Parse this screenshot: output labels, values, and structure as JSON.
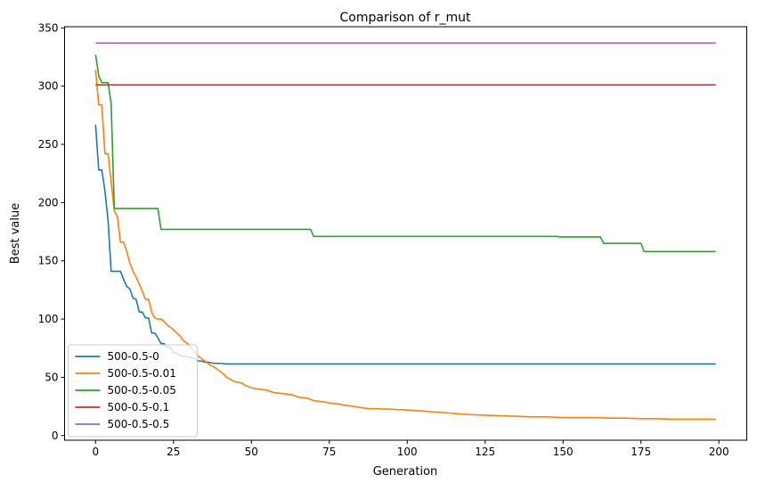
{
  "chart_data": {
    "type": "line",
    "title": "Comparison of r_mut",
    "xlabel": "Generation",
    "ylabel": "Best value",
    "xlim": [
      -9.95,
      208.95
    ],
    "ylim": [
      -4.0,
      351.0
    ],
    "xticks": [
      0,
      25,
      50,
      75,
      100,
      125,
      150,
      175,
      200
    ],
    "yticks": [
      0,
      50,
      100,
      150,
      200,
      250,
      300,
      350
    ],
    "grid": false,
    "legend_position": "lower-left",
    "series": [
      {
        "name": "500-0.5-0",
        "color": "#1f77b4",
        "points": [
          [
            0,
            267
          ],
          [
            1,
            228
          ],
          [
            2,
            228
          ],
          [
            3,
            210
          ],
          [
            4,
            185
          ],
          [
            5,
            141
          ],
          [
            6,
            141
          ],
          [
            7,
            141
          ],
          [
            8,
            141
          ],
          [
            9,
            134
          ],
          [
            10,
            128
          ],
          [
            11,
            126
          ],
          [
            12,
            118
          ],
          [
            13,
            117
          ],
          [
            14,
            106
          ],
          [
            15,
            106
          ],
          [
            16,
            101
          ],
          [
            17,
            101
          ],
          [
            18,
            88
          ],
          [
            19,
            88
          ],
          [
            20,
            84
          ],
          [
            21,
            79
          ],
          [
            22,
            79
          ],
          [
            23,
            76
          ],
          [
            24,
            76
          ],
          [
            25,
            71
          ],
          [
            26,
            71
          ],
          [
            27,
            69
          ],
          [
            28,
            68
          ],
          [
            29,
            68
          ],
          [
            30,
            67
          ],
          [
            31,
            67
          ],
          [
            32,
            65
          ],
          [
            33,
            64
          ],
          [
            34,
            64
          ],
          [
            35,
            63
          ],
          [
            36,
            63
          ],
          [
            38,
            62
          ],
          [
            40,
            62
          ],
          [
            42,
            61.5
          ],
          [
            50,
            61.5
          ],
          [
            75,
            61.5
          ],
          [
            100,
            61.5
          ],
          [
            125,
            61.5
          ],
          [
            150,
            61.5
          ],
          [
            175,
            61.5
          ],
          [
            199,
            61.5
          ]
        ]
      },
      {
        "name": "500-0.5-0.01",
        "color": "#ff7f0e",
        "points": [
          [
            0,
            314
          ],
          [
            1,
            284
          ],
          [
            2,
            284
          ],
          [
            3,
            242
          ],
          [
            4,
            242
          ],
          [
            5,
            218
          ],
          [
            6,
            193
          ],
          [
            7,
            188
          ],
          [
            8,
            166
          ],
          [
            9,
            166
          ],
          [
            10,
            158
          ],
          [
            11,
            148
          ],
          [
            12,
            141
          ],
          [
            13,
            136
          ],
          [
            14,
            130
          ],
          [
            15,
            124
          ],
          [
            16,
            117
          ],
          [
            17,
            117
          ],
          [
            18,
            106
          ],
          [
            19,
            101
          ],
          [
            20,
            100
          ],
          [
            21,
            100
          ],
          [
            22,
            98
          ],
          [
            23,
            95
          ],
          [
            24,
            93
          ],
          [
            25,
            91
          ],
          [
            26,
            88
          ],
          [
            27,
            86
          ],
          [
            28,
            82
          ],
          [
            29,
            80
          ],
          [
            30,
            78
          ],
          [
            31,
            74
          ],
          [
            32,
            71
          ],
          [
            33,
            68
          ],
          [
            34,
            66
          ],
          [
            35,
            64
          ],
          [
            36,
            62
          ],
          [
            37,
            60
          ],
          [
            38,
            59
          ],
          [
            39,
            57
          ],
          [
            40,
            55
          ],
          [
            41,
            53
          ],
          [
            42,
            50
          ],
          [
            43,
            49
          ],
          [
            44,
            47
          ],
          [
            45,
            46
          ],
          [
            47,
            45
          ],
          [
            48,
            43
          ],
          [
            50,
            41
          ],
          [
            52,
            40
          ],
          [
            55,
            39
          ],
          [
            57,
            37
          ],
          [
            60,
            36
          ],
          [
            63,
            35
          ],
          [
            65,
            33
          ],
          [
            68,
            32
          ],
          [
            70,
            30
          ],
          [
            73,
            29
          ],
          [
            75,
            28
          ],
          [
            78,
            27
          ],
          [
            80,
            26
          ],
          [
            83,
            25
          ],
          [
            85,
            24
          ],
          [
            88,
            23
          ],
          [
            90,
            23
          ],
          [
            95,
            22.5
          ],
          [
            100,
            22
          ],
          [
            105,
            21
          ],
          [
            110,
            20
          ],
          [
            115,
            19
          ],
          [
            120,
            18
          ],
          [
            125,
            17.5
          ],
          [
            130,
            17
          ],
          [
            135,
            16.5
          ],
          [
            140,
            16
          ],
          [
            145,
            16
          ],
          [
            150,
            15.5
          ],
          [
            160,
            15.5
          ],
          [
            165,
            15
          ],
          [
            170,
            15
          ],
          [
            175,
            14.5
          ],
          [
            180,
            14.5
          ],
          [
            185,
            14
          ],
          [
            190,
            14
          ],
          [
            199,
            14
          ]
        ]
      },
      {
        "name": "500-0.5-0.05",
        "color": "#2ca02c",
        "points": [
          [
            0,
            327
          ],
          [
            1,
            309
          ],
          [
            2,
            303
          ],
          [
            3,
            303
          ],
          [
            4,
            303
          ],
          [
            5,
            285
          ],
          [
            6,
            195
          ],
          [
            10,
            195
          ],
          [
            15,
            195
          ],
          [
            20,
            195
          ],
          [
            21,
            177
          ],
          [
            25,
            177
          ],
          [
            50,
            177
          ],
          [
            69,
            177
          ],
          [
            70,
            171
          ],
          [
            75,
            171
          ],
          [
            100,
            171
          ],
          [
            125,
            171
          ],
          [
            148,
            171
          ],
          [
            149,
            170.5
          ],
          [
            162,
            170.5
          ],
          [
            163,
            165
          ],
          [
            175,
            165
          ],
          [
            176,
            158
          ],
          [
            185,
            158
          ],
          [
            199,
            158
          ]
        ]
      },
      {
        "name": "500-0.5-0.1",
        "color": "#d62728",
        "points": [
          [
            0,
            301
          ],
          [
            50,
            301
          ],
          [
            100,
            301
          ],
          [
            150,
            301
          ],
          [
            199,
            301
          ]
        ]
      },
      {
        "name": "500-0.5-0.5",
        "color": "#9467bd",
        "points": [
          [
            0,
            337
          ],
          [
            50,
            337
          ],
          [
            100,
            337
          ],
          [
            150,
            337
          ],
          [
            199,
            337
          ]
        ]
      }
    ]
  }
}
